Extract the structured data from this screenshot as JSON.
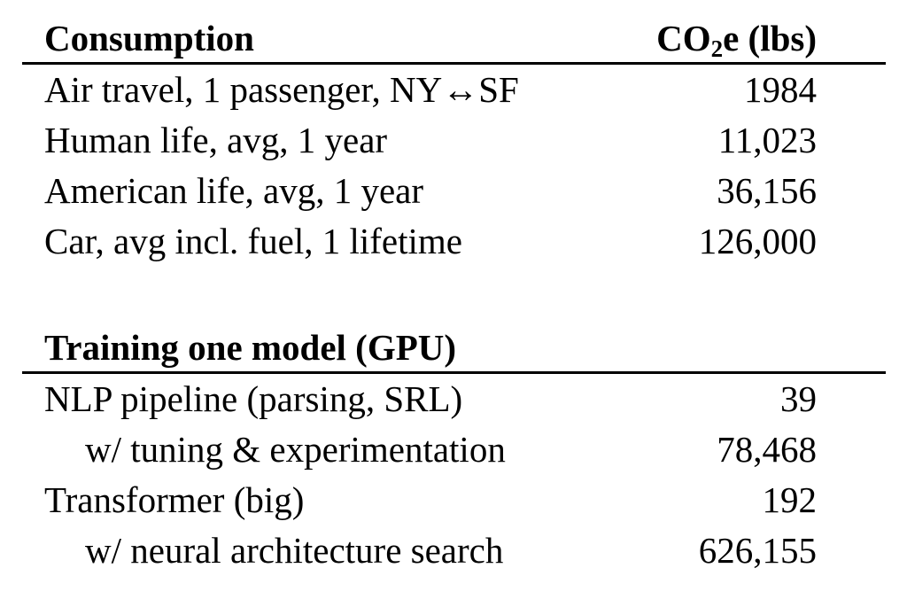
{
  "colors": {
    "text": "#000000",
    "background": "#ffffff",
    "rule": "#000000"
  },
  "table": {
    "section1": {
      "header": {
        "label": "Consumption",
        "value_prefix": "CO",
        "value_sub": "2",
        "value_suffix": "e (lbs)"
      },
      "rows": [
        {
          "label": "Air travel, 1 passenger, NY↔SF",
          "value": "1984",
          "indent": false
        },
        {
          "label": "Human life, avg, 1 year",
          "value": "11,023",
          "indent": false
        },
        {
          "label": "American life, avg, 1 year",
          "value": "36,156",
          "indent": false
        },
        {
          "label": "Car, avg incl. fuel, 1 lifetime",
          "value": "126,000",
          "indent": false
        }
      ]
    },
    "section2": {
      "header": {
        "label": "Training one model (GPU)",
        "value": ""
      },
      "rows": [
        {
          "label": "NLP pipeline (parsing, SRL)",
          "value": "39",
          "indent": false
        },
        {
          "label": "w/ tuning & experimentation",
          "value": "78,468",
          "indent": true
        },
        {
          "label": "Transformer (big)",
          "value": "192",
          "indent": false
        },
        {
          "label": "w/ neural architecture search",
          "value": "626,155",
          "indent": true
        }
      ]
    }
  }
}
